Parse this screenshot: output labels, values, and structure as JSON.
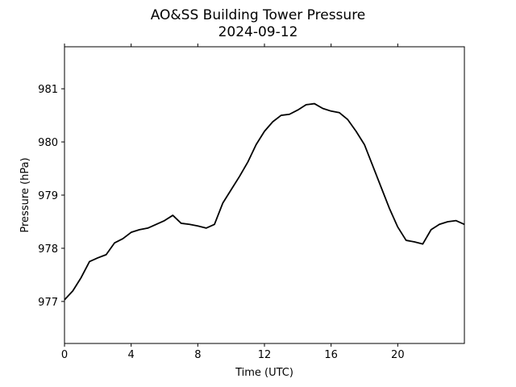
{
  "chart_data": {
    "type": "line",
    "title": "AO&SS Building Tower Pressure",
    "subtitle": "2024-09-12",
    "x_label": "Time (UTC)",
    "y_label": "Pressure (hPa)",
    "x": [
      0,
      0.5,
      1,
      1.5,
      2,
      2.5,
      3,
      3.5,
      4,
      4.5,
      5,
      5.5,
      6,
      6.5,
      7,
      7.5,
      8,
      8.5,
      9,
      9.5,
      10,
      10.5,
      11,
      11.5,
      12,
      12.5,
      13,
      13.5,
      14,
      14.5,
      15,
      15.5,
      16,
      16.5,
      17,
      17.5,
      18,
      18.5,
      19,
      19.5,
      20,
      20.5,
      21,
      21.5,
      22,
      22.5,
      23,
      23.5,
      24
    ],
    "series": [
      {
        "name": "Pressure",
        "color": "#000000",
        "values": [
          977.03,
          977.2,
          977.45,
          977.75,
          977.82,
          977.88,
          978.1,
          978.18,
          978.3,
          978.35,
          978.38,
          978.45,
          978.52,
          978.62,
          978.47,
          978.45,
          978.42,
          978.38,
          978.45,
          978.85,
          979.1,
          979.35,
          979.62,
          979.95,
          980.2,
          980.38,
          980.5,
          980.52,
          980.6,
          980.7,
          980.72,
          980.63,
          980.58,
          980.55,
          980.42,
          980.2,
          979.95,
          979.55,
          979.15,
          978.75,
          978.4,
          978.15,
          978.12,
          978.08,
          978.35,
          978.45,
          978.5,
          978.52,
          978.45
        ]
      }
    ],
    "xlim": [
      0,
      24
    ],
    "xticks": [
      0,
      4,
      8,
      12,
      16,
      20
    ],
    "ylim": [
      976.21,
      981.79
    ],
    "yticks": [
      977,
      978,
      979,
      980,
      981
    ],
    "grid": false
  }
}
